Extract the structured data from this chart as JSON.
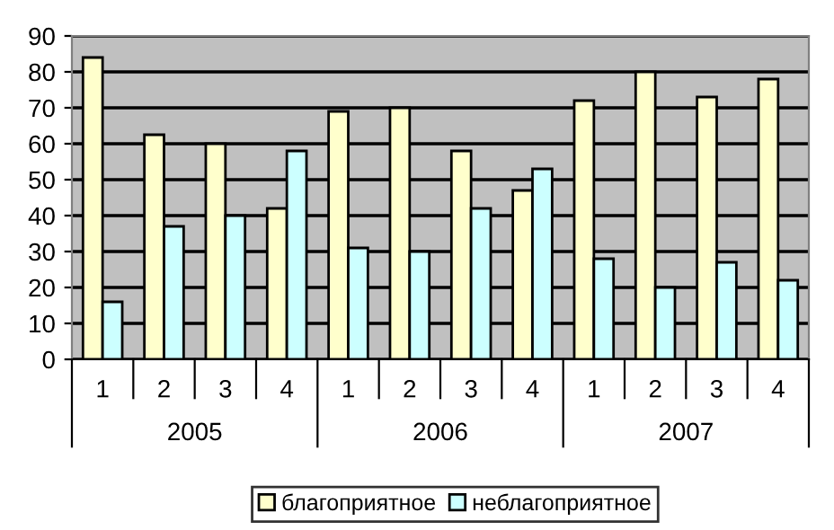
{
  "chart_data": {
    "type": "bar",
    "categories": [
      "1",
      "2",
      "3",
      "4",
      "1",
      "2",
      "3",
      "4",
      "1",
      "2",
      "3",
      "4"
    ],
    "series": [
      {
        "name": "благоприятное",
        "color": "#ffffcc",
        "values": [
          84,
          62.5,
          60,
          42,
          69,
          70,
          58,
          47,
          72,
          80,
          73,
          78
        ]
      },
      {
        "name": "неблагоприятное",
        "color": "#ccffff",
        "values": [
          16,
          37,
          40,
          58,
          31,
          30,
          42,
          53,
          28,
          20,
          27,
          22
        ]
      }
    ],
    "annotations": [
      "2005",
      "2006",
      "2007"
    ],
    "ylim": [
      0,
      90
    ],
    "yticks": [
      0,
      10,
      20,
      30,
      40,
      50,
      60,
      70,
      80,
      90
    ],
    "grid": "y",
    "legend": "bottom"
  }
}
